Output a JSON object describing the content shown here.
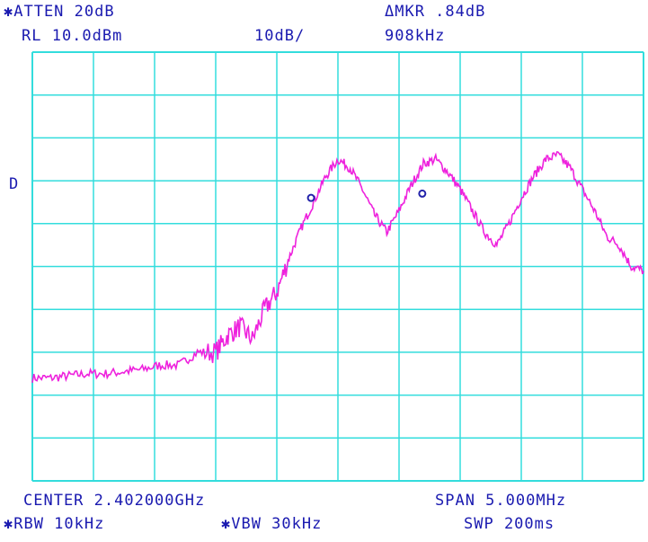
{
  "header": {
    "atten": "✱ATTEN 20dB",
    "ref_level": "RL 10.0dBm",
    "scale": "10dB/",
    "delta_marker": "ΔMKR .84dB",
    "delta_freq": "908kHz",
    "display_line": "D"
  },
  "footer": {
    "center": "CENTER 2.402000GHz",
    "span": "SPAN 5.000MHz",
    "rbw": "✱RBW 10kHz",
    "vbw": "✱VBW 30kHz",
    "sweep": "SWP 200ms"
  },
  "colors": {
    "grid": "#33dddd",
    "trace": "#ee22dd",
    "marker": "#2222aa",
    "text": "#1a1ab0"
  },
  "chart_data": {
    "type": "line",
    "grid": true,
    "xlim": [
      2399.5,
      2404.5
    ],
    "ylim": [
      -90,
      10
    ],
    "x_unit": "MHz",
    "y_unit": "dBm",
    "series": [
      {
        "x": [
          2399.5,
          2399.65,
          2399.8,
          2399.95,
          2400.1,
          2400.25,
          2400.4,
          2400.55,
          2400.7,
          2400.85,
          2401.0,
          2401.1,
          2401.2,
          2401.3,
          2401.4,
          2401.5,
          2401.6,
          2401.7,
          2401.8,
          2401.9,
          2402.0,
          2402.1,
          2402.2,
          2402.3,
          2402.4,
          2402.5,
          2402.6,
          2402.7,
          2402.8,
          2402.9,
          2403.0,
          2403.1,
          2403.2,
          2403.3,
          2403.4,
          2403.5,
          2403.6,
          2403.7,
          2403.8,
          2403.9,
          2404.0,
          2404.1,
          2404.2,
          2404.3,
          2404.4,
          2404.5
        ],
        "y": [
          -66,
          -66,
          -65.5,
          -65,
          -65,
          -64.5,
          -64,
          -63,
          -63,
          -60,
          -60,
          -56,
          -54,
          -57,
          -50,
          -46,
          -38,
          -31,
          -25,
          -19,
          -15,
          -17,
          -22,
          -28,
          -32,
          -27,
          -21,
          -16,
          -15,
          -18,
          -22,
          -27,
          -32,
          -35,
          -30,
          -24,
          -19,
          -15,
          -14,
          -17,
          -22,
          -27,
          -33,
          -35,
          -40,
          -41
        ]
      }
    ],
    "markers": [
      {
        "x": 2401.78,
        "y": -24
      },
      {
        "x": 2402.69,
        "y": -23
      }
    ]
  }
}
